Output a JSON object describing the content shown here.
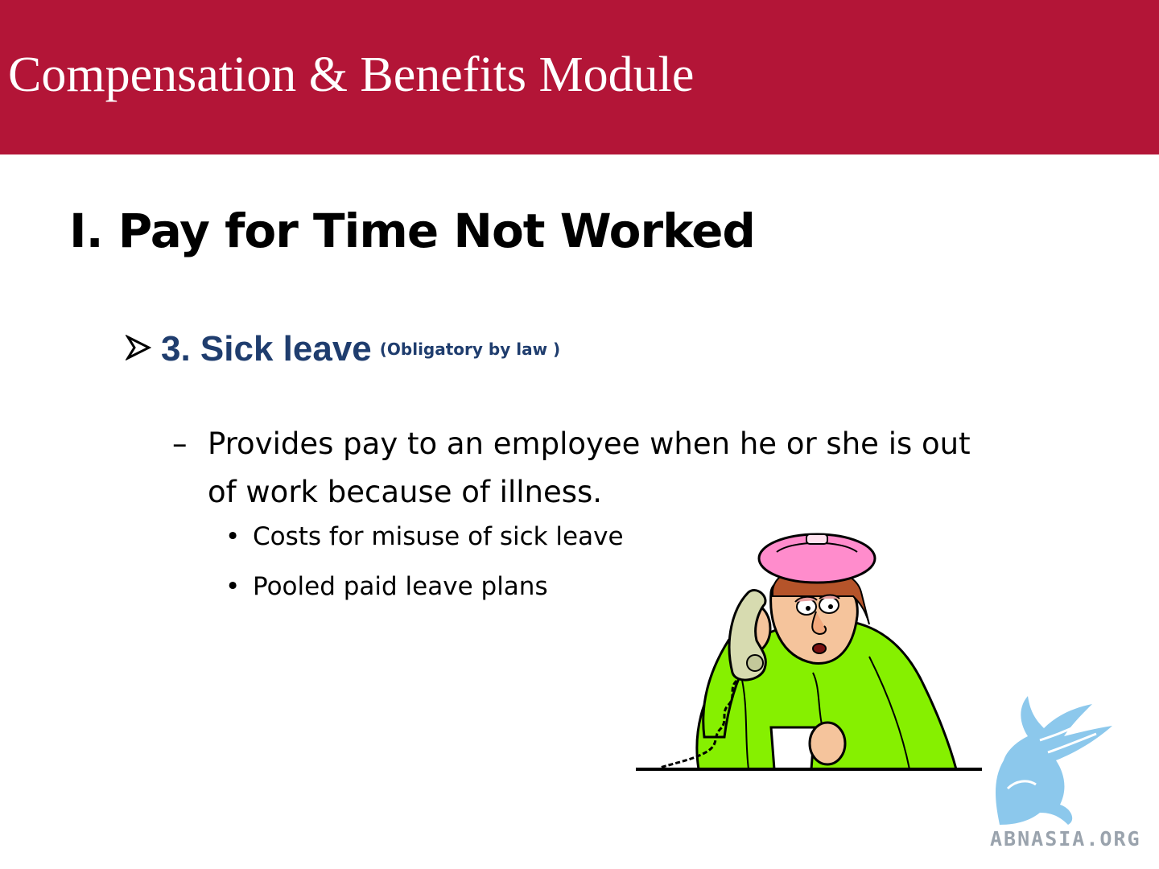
{
  "header": {
    "title": "Compensation & Benefits Module"
  },
  "slide": {
    "heading": "I. Pay for Time Not Worked",
    "item": {
      "title": "3. Sick leave",
      "note": "(Obligatory by law )",
      "description": "Provides pay to an employee when he or she is out of work because of illness.",
      "bullets": [
        "Costs for misuse of sick leave",
        "Pooled paid leave plans"
      ]
    }
  },
  "logo": {
    "text": "ABNASIA.ORG"
  },
  "icons": {
    "arrow": "arrow-bullet-icon",
    "illustration": "sick-person-on-phone-illustration",
    "logo": "griffin-logo-icon"
  },
  "colors": {
    "header": "#b31537",
    "subtitle": "#1f3d6e",
    "logo": "#8cc8ec"
  }
}
